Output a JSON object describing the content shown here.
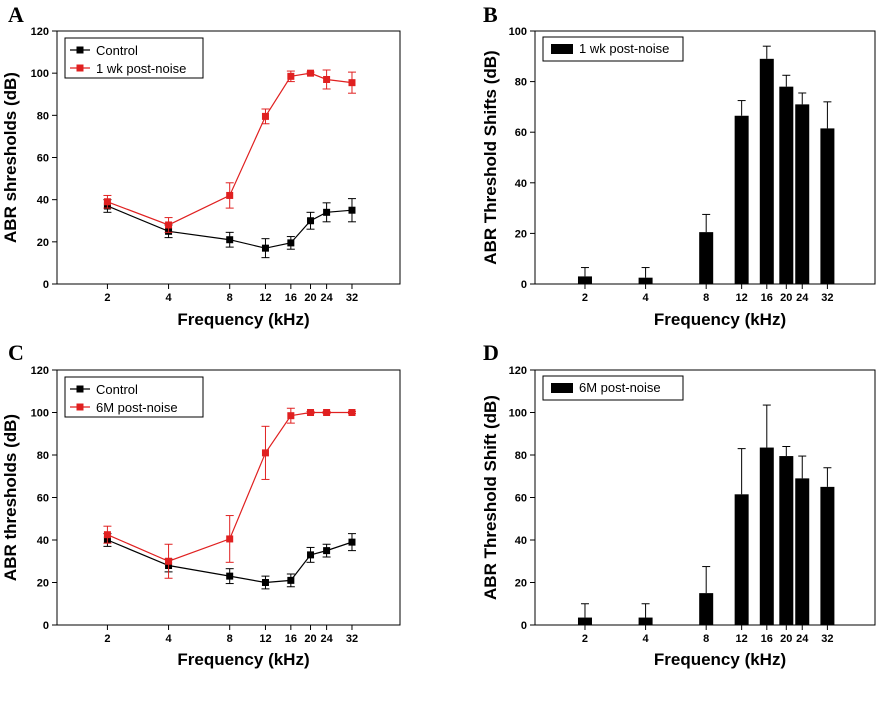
{
  "chart_data": [
    {
      "panel": "A",
      "type": "line",
      "xlabel": "Frequency (kHz)",
      "ylabel": "ABR shresholds (dB)",
      "x_log_scale": true,
      "xticks": [
        2,
        4,
        8,
        12,
        16,
        20,
        24,
        32
      ],
      "ylim": [
        0,
        120
      ],
      "yticks": [
        0,
        20,
        40,
        60,
        80,
        100,
        120
      ],
      "legend_position": "top-left",
      "series": [
        {
          "name": "Control",
          "color": "#000000",
          "x": [
            2,
            4,
            8,
            12,
            16,
            20,
            24,
            32
          ],
          "y": [
            37,
            25,
            21,
            17,
            19.5,
            30,
            34,
            35
          ],
          "error": [
            3,
            3,
            3.5,
            4.5,
            3,
            4,
            4.5,
            5.5
          ]
        },
        {
          "name": "1 wk post-noise",
          "color": "#e02020",
          "x": [
            2,
            4,
            8,
            12,
            16,
            20,
            24,
            32
          ],
          "y": [
            39,
            28,
            42,
            79.5,
            98.5,
            100,
            97,
            95.5
          ],
          "error": [
            3,
            3.5,
            6,
            3.5,
            2.5,
            0.5,
            4.5,
            5
          ]
        }
      ]
    },
    {
      "panel": "B",
      "type": "bar",
      "xlabel": "Frequency (kHz)",
      "ylabel": "ABR Threshold Shifts (dB)",
      "x_log_scale": true,
      "xticks": [
        2,
        4,
        8,
        12,
        16,
        20,
        24,
        32
      ],
      "ylim": [
        0,
        100
      ],
      "yticks": [
        0,
        20,
        40,
        60,
        80,
        100
      ],
      "legend_position": "top-left",
      "series": [
        {
          "name": "1 wk post-noise",
          "color": "#000000",
          "x": [
            2,
            4,
            8,
            12,
            16,
            20,
            24,
            32
          ],
          "y": [
            3,
            2.5,
            20.5,
            66.5,
            89,
            78,
            71,
            61.5
          ],
          "error": [
            3.5,
            4,
            7,
            6,
            5,
            4.5,
            4.5,
            10.5
          ]
        }
      ]
    },
    {
      "panel": "C",
      "type": "line",
      "xlabel": "Frequency (kHz)",
      "ylabel": "ABR thresholds (dB)",
      "x_log_scale": true,
      "xticks": [
        2,
        4,
        8,
        12,
        16,
        20,
        24,
        32
      ],
      "ylim": [
        0,
        120
      ],
      "yticks": [
        0,
        20,
        40,
        60,
        80,
        100,
        120
      ],
      "legend_position": "top-left",
      "series": [
        {
          "name": "Control",
          "color": "#000000",
          "x": [
            2,
            4,
            8,
            12,
            16,
            20,
            24,
            32
          ],
          "y": [
            40,
            28,
            23,
            20,
            21,
            33,
            35,
            39
          ],
          "error": [
            3,
            3,
            3.5,
            3,
            3,
            3.5,
            3,
            4
          ]
        },
        {
          "name": "6M post-noise",
          "color": "#e02020",
          "x": [
            2,
            4,
            8,
            12,
            16,
            20,
            24,
            32
          ],
          "y": [
            42.5,
            30,
            40.5,
            81,
            98.5,
            100,
            100,
            100
          ],
          "error": [
            4,
            8,
            11,
            12.5,
            3.5,
            0.5,
            0.5,
            0.5
          ]
        }
      ]
    },
    {
      "panel": "D",
      "type": "bar",
      "xlabel": "Frequency (kHz)",
      "ylabel": "ABR Threshold Shift (dB)",
      "x_log_scale": true,
      "xticks": [
        2,
        4,
        8,
        12,
        16,
        20,
        24,
        32
      ],
      "ylim": [
        0,
        120
      ],
      "yticks": [
        0,
        20,
        40,
        60,
        80,
        100,
        120
      ],
      "legend_position": "top-left",
      "series": [
        {
          "name": "6M post-noise",
          "color": "#000000",
          "x": [
            2,
            4,
            8,
            12,
            16,
            20,
            24,
            32
          ],
          "y": [
            3.5,
            3.5,
            15,
            61.5,
            83.5,
            79.5,
            69,
            65
          ],
          "error": [
            6.5,
            6.5,
            12.5,
            21.5,
            20,
            4.5,
            10.5,
            9
          ]
        }
      ]
    }
  ]
}
